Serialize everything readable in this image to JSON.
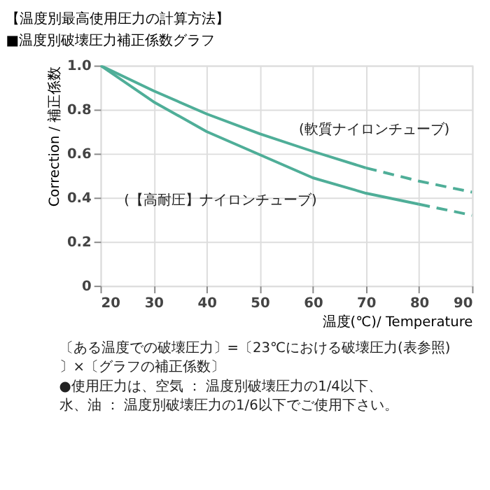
{
  "chart_data": {
    "type": "line",
    "title": "【温度別最高使用圧力の計算方法】",
    "subtitle": "■温度別破壊圧力補正係数グラフ",
    "xlabel": "温度(℃)/ Temperature",
    "ylabel": "Correction / 補正係数",
    "series": [
      {
        "name": "(軟質ナイロンチューブ)",
        "color": "#4fae98",
        "line_style": "solid",
        "x": [
          20,
          30,
          40,
          50,
          60,
          70
        ],
        "values": [
          1.0,
          0.885,
          0.78,
          0.69,
          0.61,
          0.535
        ]
      },
      {
        "color": "#4fae98",
        "line_style": "dashed",
        "x": [
          70,
          80,
          90
        ],
        "values": [
          0.535,
          0.475,
          0.425
        ]
      },
      {
        "name": "(【高耐圧】ナイロンチューブ)",
        "color": "#4fae98",
        "line_style": "solid",
        "x": [
          20,
          30,
          40,
          50,
          60,
          70,
          80
        ],
        "values": [
          1.0,
          0.835,
          0.7,
          0.595,
          0.49,
          0.42,
          0.37
        ]
      },
      {
        "color": "#4fae98",
        "line_style": "dashed",
        "x": [
          80,
          90
        ],
        "values": [
          0.37,
          0.32
        ]
      }
    ],
    "xlim": [
      20,
      90
    ],
    "xticks": [
      20,
      30,
      40,
      50,
      60,
      70,
      80,
      90
    ],
    "ylim": [
      0,
      1.0
    ],
    "yticks": [
      {
        "value": 0,
        "label": "0"
      },
      0.2,
      0.4,
      0.6,
      0.8,
      {
        "value": 1.0,
        "label": "1.0"
      }
    ],
    "grid": true,
    "marker": "none",
    "annotations": [
      "〔ある温度での破壊圧力〕=〔23℃における破壊圧力(表参照)〕×〔グラフの補正係数〕",
      "●使用圧力は、空気 ： 温度別破壊圧力の1/4以下、",
      "水、油 ： 温度別破壊圧力の1/6以下でご使用下さい。"
    ]
  }
}
